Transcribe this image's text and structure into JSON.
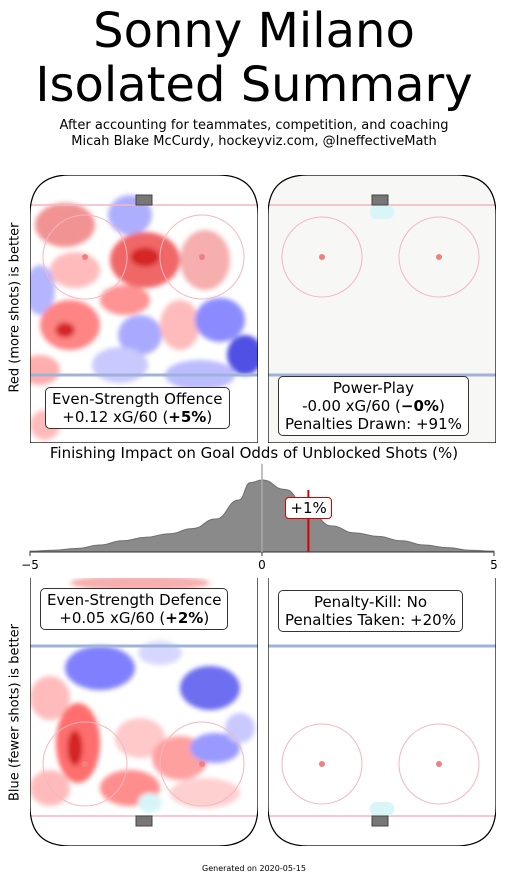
{
  "title_line1": "Sonny Milano",
  "title_line2": "Isolated Summary",
  "subtitle_line1": "After accounting for teammates, competition, and coaching",
  "subtitle_line2": "Micah Blake McCurdy, hockeyviz.com, @IneffectiveMath",
  "ylabel_top": "Red (more shots) is better",
  "ylabel_bottom": "Blue (fewer shots) is better",
  "panels": {
    "ev_offence": {
      "line1": "Even-Strength Offence",
      "line2_prefix": "+0.12 xG/60 (",
      "line2_bold": "+5%",
      "line2_suffix": ")"
    },
    "power_play": {
      "line1": "Power-Play",
      "line2_prefix": "-0.00 xG/60 (",
      "line2_bold": "−0%",
      "line2_suffix": ")",
      "line3": "Penalties Drawn: +91%"
    },
    "ev_defence": {
      "line1": "Even-Strength Defence",
      "line2_prefix": "+0.05 xG/60 (",
      "line2_bold": "+2%",
      "line2_suffix": ")"
    },
    "penalty_kill": {
      "line1": "Penalty-Kill: No",
      "line2": "Penalties Taken: +20%"
    }
  },
  "finishing": {
    "title": "Finishing Impact on Goal Odds of Unblocked Shots (%)",
    "marker_label": "+1%"
  },
  "footer": "Generated on 2020-05-15",
  "chart_data": {
    "type": "area",
    "title": "Finishing Impact on Goal Odds of Unblocked Shots (%)",
    "xlabel": "",
    "ylabel": "",
    "xlim": [
      -5,
      5
    ],
    "x_ticks": [
      "−5",
      "0",
      "5"
    ],
    "x": [
      -5,
      -4.5,
      -4,
      -3.5,
      -3,
      -2.5,
      -2,
      -1.5,
      -1,
      -0.5,
      -0.25,
      0,
      0.5,
      1,
      1.5,
      2,
      2.5,
      3,
      3.5,
      4,
      4.5,
      5
    ],
    "series": [
      {
        "values": [
          0.01,
          0.02,
          0.04,
          0.08,
          0.13,
          0.17,
          0.21,
          0.27,
          0.38,
          0.6,
          0.8,
          0.83,
          0.72,
          0.48,
          0.3,
          0.22,
          0.18,
          0.13,
          0.08,
          0.05,
          0.02,
          0.01
        ]
      }
    ],
    "reference_line_x": 0,
    "marker": {
      "x": 1,
      "label": "+1%"
    },
    "colors": {
      "density": "#8a8a8a",
      "marker": "#d40000",
      "reference": "#aaaaaa"
    }
  }
}
